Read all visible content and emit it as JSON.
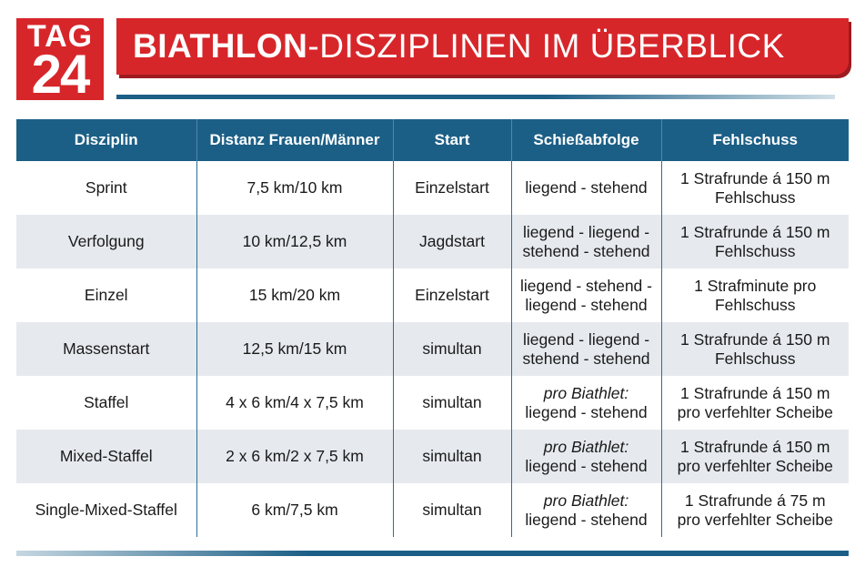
{
  "logo": {
    "line1": "TAG",
    "line2": "24"
  },
  "title": {
    "bold": "BIATHLON",
    "rest": "-DISZIPLINEN IM ÜBERBLICK"
  },
  "table": {
    "headers": [
      "Disziplin",
      "Distanz Frauen/Männer",
      "Start",
      "Schießabfolge",
      "Fehlschuss"
    ],
    "rows": [
      {
        "disziplin": "Sprint",
        "distanz": "7,5 km/10 km",
        "start": "Einzelstart",
        "schiess": [
          "liegend - stehend"
        ],
        "fehl": [
          "1 Strafrunde á 150 m",
          "Fehlschuss"
        ]
      },
      {
        "disziplin": "Verfolgung",
        "distanz": "10 km/12,5 km",
        "start": "Jagdstart",
        "schiess": [
          "liegend - liegend -",
          "stehend - stehend"
        ],
        "fehl": [
          "1 Strafrunde á 150 m",
          "Fehlschuss"
        ]
      },
      {
        "disziplin": "Einzel",
        "distanz": "15 km/20 km",
        "start": "Einzelstart",
        "schiess": [
          "liegend - stehend -",
          "liegend - stehend"
        ],
        "fehl": [
          "1 Strafminute pro",
          "Fehlschuss"
        ]
      },
      {
        "disziplin": "Massenstart",
        "distanz": "12,5 km/15 km",
        "start": "simultan",
        "schiess": [
          "liegend - liegend -",
          "stehend - stehend"
        ],
        "fehl": [
          "1 Strafrunde á 150 m",
          "Fehlschuss"
        ]
      },
      {
        "disziplin": "Staffel",
        "distanz": "4 x 6 km/4 x 7,5 km",
        "start": "simultan",
        "schiess": [
          "pro Biathlet:",
          "liegend - stehend"
        ],
        "fehl": [
          "1 Strafrunde á 150 m",
          "pro verfehlter Scheibe"
        ]
      },
      {
        "disziplin": "Mixed-Staffel",
        "distanz": "2 x 6 km/2 x 7,5 km",
        "start": "simultan",
        "schiess": [
          "pro Biathlet:",
          "liegend - stehend"
        ],
        "fehl": [
          "1 Strafrunde á 150 m",
          "pro verfehlter Scheibe"
        ]
      },
      {
        "disziplin": "Single-Mixed-Staffel",
        "distanz": "6 km/7,5 km",
        "start": "simultan",
        "schiess": [
          "pro Biathlet:",
          "liegend - stehend"
        ],
        "fehl": [
          "1 Strafrunde á 75 m",
          "pro verfehlter Scheibe"
        ]
      }
    ]
  },
  "colors": {
    "brand_red": "#d7262a",
    "header_blue": "#1c5f86",
    "row_alt": "#e6e9ee"
  }
}
